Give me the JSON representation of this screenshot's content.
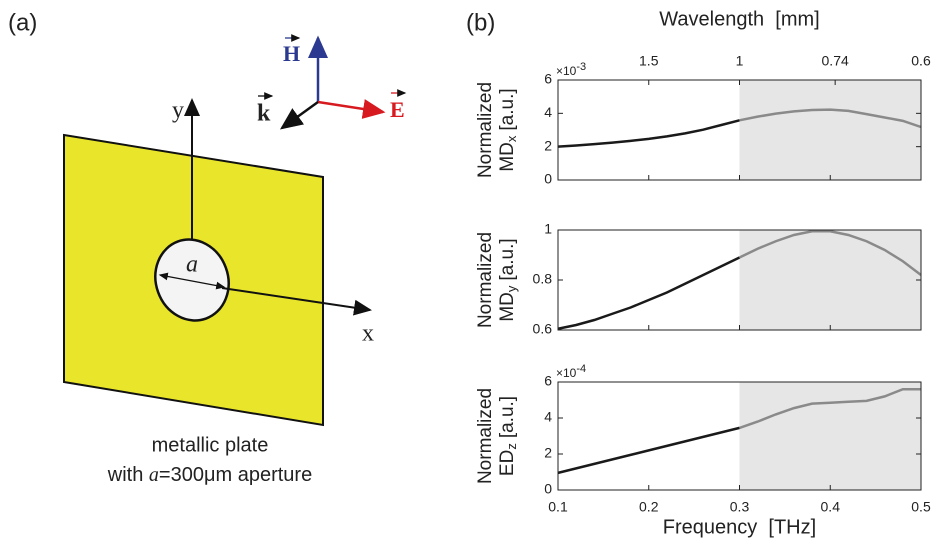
{
  "panel_a": {
    "label": "(a)",
    "axis_y": "y",
    "axis_x": "x",
    "aperture": "a",
    "vector_h": "H",
    "vector_k": "k",
    "vector_e": "E",
    "caption_line1": "metallic plate",
    "caption_line2": {
      "prefix": "with ",
      "variable": "a",
      "suffix": "=300μm aperture"
    }
  },
  "panel_b": {
    "label": "(b)"
  },
  "chart_data": [
    {
      "type": "line",
      "ylabel_line1": "Normalized",
      "ylabel_quantity": "MD",
      "ylabel_sub": "x",
      "ylabel_unit": "[a.u.]",
      "y_multiplier": {
        "base": "×10",
        "exponent": "-3"
      },
      "x2label": "Wavelength  [mm]",
      "x2lim": [
        3,
        0.6
      ],
      "x2scale": "reciprocal",
      "x2ticks": [
        1.5,
        1,
        0.74,
        0.6
      ],
      "x": [
        0.1,
        0.12,
        0.14,
        0.16,
        0.18,
        0.2,
        0.22,
        0.24,
        0.26,
        0.28,
        0.3,
        0.32,
        0.34,
        0.36,
        0.38,
        0.4,
        0.42,
        0.44,
        0.46,
        0.48,
        0.5
      ],
      "values": [
        2.0,
        2.07,
        2.15,
        2.24,
        2.35,
        2.47,
        2.62,
        2.8,
        3.02,
        3.3,
        3.58,
        3.8,
        3.98,
        4.12,
        4.2,
        4.22,
        4.15,
        3.95,
        3.75,
        3.55,
        3.18
      ],
      "color": "#1a1a1a",
      "shaded_color": "#8a8a8a",
      "shaded_xlim": [
        0.3,
        0.5
      ],
      "shade_fill": "#e6e6e6",
      "xlim": [
        0.1,
        0.5
      ],
      "xticks": [
        0.1,
        0.2,
        0.3,
        0.4,
        0.5
      ],
      "show_xtick_labels": false,
      "ylim": [
        0,
        6
      ],
      "yticks": [
        0,
        2,
        4,
        6
      ]
    },
    {
      "type": "line",
      "ylabel_line1": "Normalized",
      "ylabel_quantity": "MD",
      "ylabel_sub": "y",
      "ylabel_unit": "[a.u.]",
      "x": [
        0.1,
        0.12,
        0.14,
        0.16,
        0.18,
        0.2,
        0.22,
        0.24,
        0.26,
        0.28,
        0.3,
        0.32,
        0.34,
        0.36,
        0.38,
        0.4,
        0.42,
        0.44,
        0.46,
        0.48,
        0.5
      ],
      "values": [
        0.605,
        0.62,
        0.64,
        0.665,
        0.69,
        0.72,
        0.75,
        0.785,
        0.82,
        0.855,
        0.89,
        0.925,
        0.955,
        0.98,
        0.995,
        0.995,
        0.98,
        0.955,
        0.92,
        0.875,
        0.82
      ],
      "color": "#1a1a1a",
      "shaded_color": "#8a8a8a",
      "shaded_xlim": [
        0.3,
        0.5
      ],
      "shade_fill": "#e6e6e6",
      "xlim": [
        0.1,
        0.5
      ],
      "xticks": [
        0.1,
        0.2,
        0.3,
        0.4,
        0.5
      ],
      "show_xtick_labels": false,
      "ylim": [
        0.6,
        1
      ],
      "yticks": [
        0.6,
        0.8,
        1
      ]
    },
    {
      "type": "line",
      "ylabel_line1": "Normalized",
      "ylabel_quantity": "ED",
      "ylabel_sub": "z",
      "ylabel_unit": "[a.u.]",
      "y_multiplier": {
        "base": "×10",
        "exponent": "-4"
      },
      "xlabel": "Frequency  [THz]",
      "x": [
        0.1,
        0.12,
        0.14,
        0.16,
        0.18,
        0.2,
        0.22,
        0.24,
        0.26,
        0.28,
        0.3,
        0.32,
        0.34,
        0.36,
        0.38,
        0.4,
        0.42,
        0.44,
        0.46,
        0.48,
        0.5
      ],
      "values": [
        0.95,
        1.2,
        1.45,
        1.7,
        1.95,
        2.2,
        2.45,
        2.7,
        2.95,
        3.2,
        3.45,
        3.8,
        4.2,
        4.55,
        4.8,
        4.85,
        4.9,
        4.95,
        5.2,
        5.6,
        5.6
      ],
      "color": "#1a1a1a",
      "shaded_color": "#8a8a8a",
      "shaded_xlim": [
        0.3,
        0.5
      ],
      "shade_fill": "#e6e6e6",
      "xlim": [
        0.1,
        0.5
      ],
      "xticks": [
        0.1,
        0.2,
        0.3,
        0.4,
        0.5
      ],
      "show_xtick_labels": true,
      "ylim": [
        0,
        6
      ],
      "yticks": [
        0,
        2,
        4,
        6
      ]
    }
  ]
}
